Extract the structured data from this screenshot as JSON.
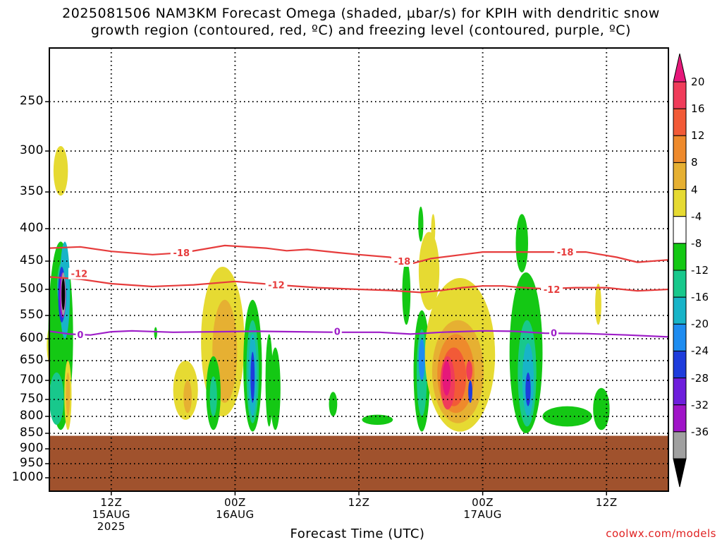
{
  "title_line1": "2025081506 NAM3KM Forecast Omega (shaded, µbar/s) for KPIH with dendritic snow",
  "title_line2": "growth region (contoured, red, ºC) and freezing level (contoured, purple, ºC)",
  "xaxis_title": "Forecast Time (UTC)",
  "credit": "coolwx.com/models",
  "chart_data": {
    "type": "heatmap",
    "x_ticks": [
      {
        "label1": "12Z",
        "label2": "15AUG",
        "label3": "2025",
        "x_hours": 6
      },
      {
        "label1": "00Z",
        "label2": "16AUG",
        "label3": "",
        "x_hours": 18
      },
      {
        "label1": "12Z",
        "label2": "",
        "label3": "",
        "x_hours": 30
      },
      {
        "label1": "00Z",
        "label2": "17AUG",
        "label3": "",
        "x_hours": 42
      },
      {
        "label1": "12Z",
        "label2": "",
        "label3": "",
        "x_hours": 54
      }
    ],
    "x_range_hours": [
      0,
      60
    ],
    "y_levels_hpa": [
      250,
      300,
      350,
      400,
      450,
      500,
      550,
      600,
      650,
      700,
      750,
      800,
      850,
      900,
      950,
      1000
    ],
    "ylim": [
      200,
      1050
    ],
    "grid": true,
    "colorbar": {
      "labels": [
        "20",
        "16",
        "12",
        "8",
        "4",
        "-4",
        "-8",
        "-12",
        "-16",
        "-20",
        "-24",
        "-28",
        "-32",
        "-36"
      ],
      "colors": [
        "#f03c5a",
        "#f25a37",
        "#ee8a2c",
        "#e6b032",
        "#e6da32",
        "#ffffff",
        "#14c814",
        "#18c88c",
        "#18b4c8",
        "#1e8cf0",
        "#1e3cdc",
        "#6e1edc",
        "#a014c8",
        "#a0a0a0",
        "#000000"
      ],
      "top_arrow_color": "#e6187a",
      "bottom_arrow_color": "#000000"
    },
    "contours": [
      {
        "label": "-18",
        "color": "#e63c3c",
        "points": [
          [
            0,
            430
          ],
          [
            3,
            428
          ],
          [
            6,
            435
          ],
          [
            10,
            440
          ],
          [
            13,
            437
          ],
          [
            17,
            426
          ],
          [
            21,
            430
          ],
          [
            23,
            434
          ],
          [
            25,
            432
          ],
          [
            28,
            437
          ],
          [
            30,
            440
          ],
          [
            33,
            444
          ],
          [
            35,
            455
          ],
          [
            37,
            446
          ],
          [
            40,
            440
          ],
          [
            42,
            436
          ],
          [
            45,
            436
          ],
          [
            48,
            436
          ],
          [
            52,
            436
          ],
          [
            55,
            444
          ],
          [
            57,
            452
          ],
          [
            60,
            448
          ]
        ],
        "label_positions": [
          [
            12.8,
            437
          ],
          [
            34.2,
            450
          ],
          [
            50,
            436
          ]
        ]
      },
      {
        "label": "-12",
        "color": "#e63c3c",
        "points": [
          [
            0,
            478
          ],
          [
            3,
            482
          ],
          [
            6,
            490
          ],
          [
            10,
            495
          ],
          [
            14,
            492
          ],
          [
            18,
            486
          ],
          [
            22,
            492
          ],
          [
            26,
            497
          ],
          [
            30,
            500
          ],
          [
            33,
            502
          ],
          [
            36,
            506
          ],
          [
            38,
            502
          ],
          [
            40,
            497
          ],
          [
            42,
            494
          ],
          [
            44,
            494
          ],
          [
            46,
            497
          ],
          [
            48,
            499
          ],
          [
            51,
            497
          ],
          [
            54,
            497
          ],
          [
            57,
            503
          ],
          [
            60,
            500
          ]
        ],
        "label_positions": [
          [
            2.9,
            472
          ],
          [
            22,
            492
          ],
          [
            48.7,
            500
          ]
        ]
      },
      {
        "label": "0",
        "color": "#9e1ec8",
        "points": [
          [
            0,
            584
          ],
          [
            2,
            590
          ],
          [
            4,
            592
          ],
          [
            6,
            585
          ],
          [
            8,
            583
          ],
          [
            12,
            586
          ],
          [
            16,
            585
          ],
          [
            20,
            584
          ],
          [
            24,
            585
          ],
          [
            28,
            586
          ],
          [
            32,
            586
          ],
          [
            35,
            590
          ],
          [
            38,
            586
          ],
          [
            42,
            583
          ],
          [
            45,
            584
          ],
          [
            48,
            588
          ],
          [
            52,
            589
          ],
          [
            56,
            592
          ],
          [
            60,
            596
          ]
        ],
        "label_positions": [
          [
            3,
            591
          ],
          [
            27.9,
            584
          ],
          [
            48.9,
            587
          ]
        ]
      }
    ],
    "terrain": {
      "color": "#a0522d",
      "top_hpa": 858
    }
  }
}
